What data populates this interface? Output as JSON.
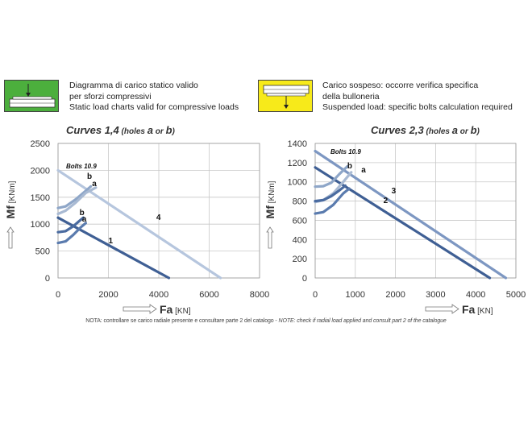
{
  "legend": {
    "static": {
      "color": "#4caf3d",
      "line1": "Diagramma di carico statico valido",
      "line2": "per sforzi compressivi",
      "line3": "Static load charts valid for compressive loads"
    },
    "suspended": {
      "color": "#f7ea1a",
      "line1": "Carico sospeso: occorre verifica specifica",
      "line2": "della bulloneria",
      "line3": "Suspended load:  specific bolts calculation required"
    }
  },
  "note": {
    "it": "NOTA: controllare se carico radiale presente e consultare parte 2 del catalogo - ",
    "en": "NOTE: check if radial load applied and consult part 2 of the catalogue"
  },
  "chart_data": [
    {
      "type": "line",
      "title": "Curves 1,4",
      "subtitle_pre": " (holes ",
      "subtitle_a": "a",
      "subtitle_mid": " or ",
      "subtitle_b": "b",
      "subtitle_post": ")",
      "xlabel": "Fa",
      "xunit": "[KN]",
      "ylabel": "Mf",
      "yunit": "[KNm]",
      "xlim": [
        0,
        8000
      ],
      "ylim": [
        0,
        2500
      ],
      "xticks": [
        0,
        2000,
        4000,
        6000,
        8000
      ],
      "yticks": [
        0,
        500,
        1000,
        1500,
        2000,
        2500
      ],
      "grid": true,
      "annotation": "Bolts 10.9",
      "series": [
        {
          "name": "1",
          "color": "#3f5f94",
          "points": [
            [
              0,
              1120
            ],
            [
              4400,
              0
            ]
          ]
        },
        {
          "name": "4",
          "color": "#b6c6de",
          "points": [
            [
              0,
              2000
            ],
            [
              6450,
              0
            ]
          ]
        },
        {
          "name": "b",
          "color": "#8ea6c8",
          "points": [
            [
              0,
              1300
            ],
            [
              300,
              1330
            ],
            [
              700,
              1460
            ],
            [
              1100,
              1620
            ],
            [
              1300,
              1700
            ]
          ]
        },
        {
          "name": "a",
          "color": "#a9bad3",
          "points": [
            [
              0,
              1190
            ],
            [
              300,
              1250
            ],
            [
              700,
              1400
            ],
            [
              1100,
              1580
            ],
            [
              1500,
              1680
            ]
          ]
        },
        {
          "name": "b",
          "color": "#4a6ba0",
          "points": [
            [
              0,
              850
            ],
            [
              300,
              870
            ],
            [
              600,
              960
            ],
            [
              800,
              1040
            ],
            [
              1000,
              1120
            ]
          ]
        },
        {
          "name": "a",
          "color": "#5a7bae",
          "points": [
            [
              0,
              650
            ],
            [
              300,
              680
            ],
            [
              600,
              800
            ],
            [
              900,
              940
            ],
            [
              1100,
              1020
            ]
          ]
        }
      ],
      "curve_labels": [
        {
          "text": "1",
          "x": 2000,
          "y": 640
        },
        {
          "text": "4",
          "x": 3900,
          "y": 1080
        },
        {
          "text": "b",
          "x": 1150,
          "y": 1840
        },
        {
          "text": "a",
          "x": 1350,
          "y": 1710
        },
        {
          "text": "b",
          "x": 850,
          "y": 1170
        },
        {
          "text": "a",
          "x": 950,
          "y": 1050
        }
      ]
    },
    {
      "type": "line",
      "title": "Curves 2,3",
      "subtitle_pre": " (holes ",
      "subtitle_a": "a",
      "subtitle_mid": " or ",
      "subtitle_b": "b",
      "subtitle_post": ")",
      "xlabel": "Fa",
      "xunit": "[KN]",
      "ylabel": "Mf",
      "yunit": "[KNm]",
      "xlim": [
        0,
        5000
      ],
      "ylim": [
        0,
        1400
      ],
      "xticks": [
        0,
        1000,
        2000,
        3000,
        4000,
        5000
      ],
      "yticks": [
        0,
        200,
        400,
        600,
        800,
        1000,
        1200,
        1400
      ],
      "grid": true,
      "annotation": "Bolts 10.9",
      "series": [
        {
          "name": "2",
          "color": "#3f5f94",
          "points": [
            [
              0,
              1150
            ],
            [
              4350,
              0
            ]
          ]
        },
        {
          "name": "3",
          "color": "#7d97c2",
          "points": [
            [
              0,
              1320
            ],
            [
              4750,
              0
            ]
          ]
        },
        {
          "name": "b",
          "color": "#8ea6c8",
          "points": [
            [
              0,
              950
            ],
            [
              200,
              955
            ],
            [
              400,
              990
            ],
            [
              600,
              1080
            ],
            [
              800,
              1160
            ]
          ]
        },
        {
          "name": "a",
          "color": "#a9bad3",
          "points": [
            [
              0,
              790
            ],
            [
              200,
              810
            ],
            [
              450,
              880
            ],
            [
              700,
              1000
            ],
            [
              900,
              1100
            ]
          ]
        },
        {
          "name": "b",
          "color": "#4a6ba0",
          "points": [
            [
              0,
              800
            ],
            [
              200,
              810
            ],
            [
              400,
              850
            ],
            [
              600,
              910
            ],
            [
              750,
              960
            ]
          ]
        },
        {
          "name": "a",
          "color": "#5a7bae",
          "points": [
            [
              0,
              670
            ],
            [
              200,
              685
            ],
            [
              450,
              760
            ],
            [
              700,
              880
            ],
            [
              850,
              930
            ]
          ]
        }
      ],
      "curve_labels": [
        {
          "text": "2",
          "x": 1700,
          "y": 780
        },
        {
          "text": "3",
          "x": 1900,
          "y": 880
        },
        {
          "text": "b",
          "x": 800,
          "y": 1140
        },
        {
          "text": "a",
          "x": 1150,
          "y": 1100
        }
      ]
    }
  ]
}
